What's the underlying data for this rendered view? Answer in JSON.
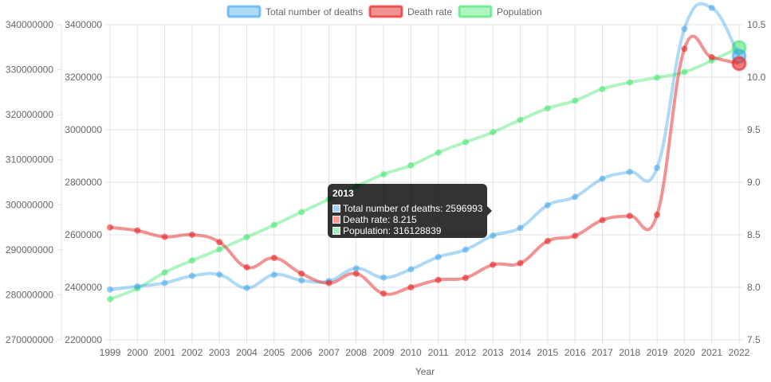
{
  "chart_data": {
    "type": "line",
    "x": [
      "1999",
      "2000",
      "2001",
      "2002",
      "2003",
      "2004",
      "2005",
      "2006",
      "2007",
      "2008",
      "2009",
      "2010",
      "2011",
      "2012",
      "2013",
      "2014",
      "2015",
      "2016",
      "2017",
      "2018",
      "2019",
      "2020",
      "2021",
      "2022"
    ],
    "xlabel": "Year",
    "series": [
      {
        "name": "Total number of deaths",
        "color": "#36a2eb",
        "axis": "y_deaths",
        "values": [
          2391399,
          2403351,
          2416425,
          2443387,
          2448288,
          2397615,
          2448017,
          2426264,
          2423712,
          2471984,
          2437163,
          2468435,
          2515458,
          2543279,
          2596993,
          2626418,
          2712630,
          2744248,
          2813503,
          2839205,
          2854838,
          3383729,
          3464231,
          3279857
        ]
      },
      {
        "name": "Death rate",
        "color": "#ff6384",
        "axis": "y_rate",
        "values": [
          8.57,
          8.54,
          8.48,
          8.5,
          8.43,
          8.19,
          8.28,
          8.13,
          8.04,
          8.13,
          7.94,
          8.0,
          8.07,
          8.09,
          8.215,
          8.23,
          8.44,
          8.49,
          8.64,
          8.68,
          8.69,
          10.27,
          10.19,
          10.13
        ]
      },
      {
        "name": "Population",
        "color": "#4bc0c0",
        "axis": "y_pop",
        "values": [
          279040168,
          281421906,
          284968955,
          287625193,
          290107933,
          292805298,
          295516599,
          298379912,
          301231207,
          304093966,
          306771529,
          308745538,
          311591917,
          313914040,
          316128839,
          318857056,
          321418820,
          323127513,
          325719178,
          327167434,
          328239523,
          329484123,
          332031554,
          334914895
        ]
      }
    ],
    "axes": {
      "y_pop": {
        "position": "left",
        "min": 270000000,
        "max": 340000000,
        "step": 10000000,
        "ticks": [
          "340000000",
          "330000000",
          "320000000",
          "310000000",
          "300000000",
          "290000000",
          "280000000",
          "270000000"
        ]
      },
      "y_deaths": {
        "position": "left-inner",
        "min": 2200000,
        "max": 3400000,
        "step": 200000,
        "ticks": [
          "3400000",
          "3200000",
          "3000000",
          "2800000",
          "2600000",
          "2400000",
          "2200000"
        ]
      },
      "y_rate": {
        "position": "right",
        "min": 7.5,
        "max": 10.5,
        "step": 0.5,
        "ticks": [
          "10.5",
          "10.0",
          "9.5",
          "9.0",
          "8.5",
          "8.0",
          "7.5"
        ]
      }
    },
    "grid": true,
    "legend_position": "top"
  },
  "tooltip": {
    "title": "2013",
    "rows": [
      {
        "text": "Total number of deaths: 2596993",
        "color": "#a7d2f5"
      },
      {
        "text": "Death rate: 8.215",
        "color": "#ff9999"
      },
      {
        "text": "Population: 316128839",
        "color": "#a6efbf"
      }
    ]
  }
}
